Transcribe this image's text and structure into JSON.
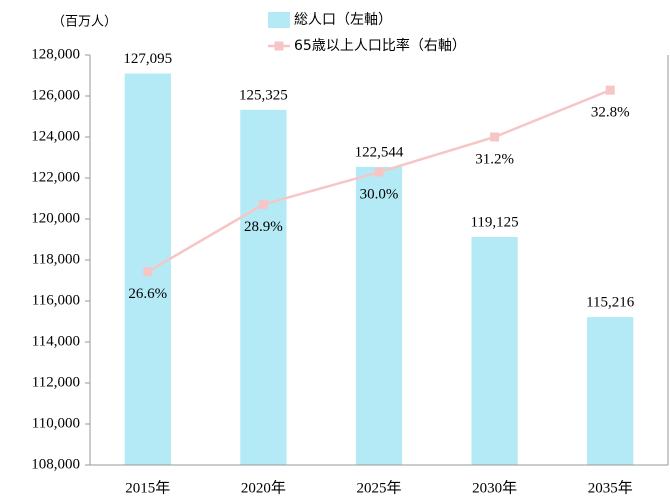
{
  "chart_data": {
    "type": "bar",
    "y_axis_label": "（百万人）",
    "categories": [
      "2015年",
      "2020年",
      "2025年",
      "2030年",
      "2035年"
    ],
    "series": [
      {
        "name": "総人口（左軸）",
        "type": "bar",
        "color": "#b4eaf6",
        "values": [
          127095,
          125325,
          122544,
          119125,
          115216
        ],
        "value_labels": [
          "127,095",
          "125,325",
          "122,544",
          "119,125",
          "115,216"
        ]
      },
      {
        "name": "65歳以上人口比率（右軸）",
        "type": "line",
        "axis": "y2",
        "color": "#f6c6c6",
        "values": [
          26.6,
          28.9,
          30.0,
          31.2,
          32.8
        ],
        "value_labels": [
          "26.6%",
          "28.9%",
          "30.0%",
          "31.2%",
          "32.8%"
        ]
      }
    ],
    "ylim": [
      108000,
      128000
    ],
    "yticks": [
      {
        "value": 108000,
        "label": "108,000"
      },
      {
        "value": 110000,
        "label": "110,000"
      },
      {
        "value": 112000,
        "label": "112,000"
      },
      {
        "value": 114000,
        "label": "114,000"
      },
      {
        "value": 116000,
        "label": "116,000"
      },
      {
        "value": 118000,
        "label": "118,000"
      },
      {
        "value": 120000,
        "label": "120,000"
      },
      {
        "value": 122000,
        "label": "122,000"
      },
      {
        "value": 124000,
        "label": "124,000"
      },
      {
        "value": 126000,
        "label": "126,000"
      },
      {
        "value": 128000,
        "label": "128,000"
      }
    ],
    "y2lim": [
      20,
      34
    ],
    "legend": "top"
  }
}
